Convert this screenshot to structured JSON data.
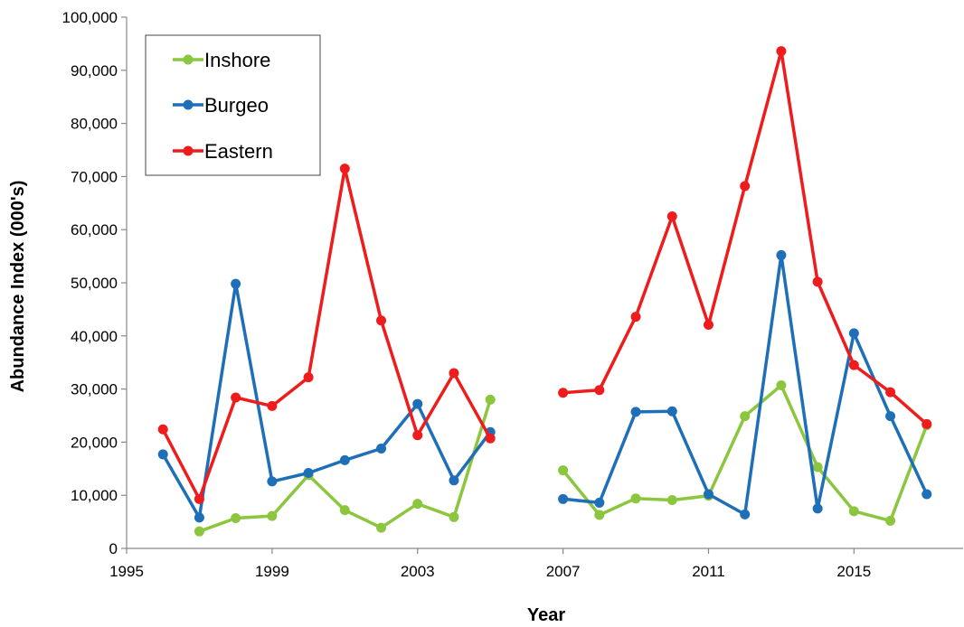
{
  "chart_data": {
    "type": "line",
    "title": "",
    "xlabel": "Year",
    "ylabel": "Abundance Index (000's)",
    "xlim": [
      1995,
      2018
    ],
    "ylim": [
      0,
      100000
    ],
    "x_ticks": [
      1995,
      1999,
      2003,
      2007,
      2011,
      2015
    ],
    "x_tick_labels": [
      "1995",
      "1999",
      "2003",
      "2007",
      "2011",
      "2015"
    ],
    "y_ticks": [
      0,
      10000,
      20000,
      30000,
      40000,
      50000,
      60000,
      70000,
      80000,
      90000,
      100000
    ],
    "y_tick_labels": [
      "0",
      "10,000",
      "20,000",
      "30,000",
      "40,000",
      "50,000",
      "60,000",
      "70,000",
      "80,000",
      "90,000",
      "100,000"
    ],
    "legend_position": "top-left",
    "grid": false,
    "series": [
      {
        "name": "Inshore",
        "color": "#8cc63f",
        "points": [
          [
            1997,
            3200
          ],
          [
            1998,
            5700
          ],
          [
            1999,
            6100
          ],
          [
            2000,
            13800
          ],
          [
            2001,
            7200
          ],
          [
            2002,
            3900
          ],
          [
            2003,
            8400
          ],
          [
            2004,
            5900
          ],
          [
            2005,
            28000
          ],
          [
            2007,
            14700
          ],
          [
            2008,
            6300
          ],
          [
            2009,
            9400
          ],
          [
            2010,
            9100
          ],
          [
            2011,
            9900
          ],
          [
            2012,
            24900
          ],
          [
            2013,
            30700
          ],
          [
            2014,
            15300
          ],
          [
            2015,
            7000
          ],
          [
            2016,
            5200
          ],
          [
            2017,
            23200
          ]
        ]
      },
      {
        "name": "Burgeo",
        "color": "#1f6fb8",
        "points": [
          [
            1996,
            17700
          ],
          [
            1997,
            5800
          ],
          [
            1998,
            49800
          ],
          [
            1999,
            12600
          ],
          [
            2000,
            14200
          ],
          [
            2001,
            16600
          ],
          [
            2002,
            18800
          ],
          [
            2003,
            27200
          ],
          [
            2004,
            12800
          ],
          [
            2005,
            21900
          ],
          [
            2007,
            9300
          ],
          [
            2008,
            8600
          ],
          [
            2009,
            25700
          ],
          [
            2010,
            25800
          ],
          [
            2011,
            10200
          ],
          [
            2012,
            6400
          ],
          [
            2013,
            55200
          ],
          [
            2014,
            7500
          ],
          [
            2015,
            40500
          ],
          [
            2016,
            24900
          ],
          [
            2017,
            10200
          ]
        ]
      },
      {
        "name": "Eastern",
        "color": "#ee1c1c",
        "points": [
          [
            1996,
            22400
          ],
          [
            1997,
            9300
          ],
          [
            1998,
            28400
          ],
          [
            1999,
            26800
          ],
          [
            2000,
            32200
          ],
          [
            2001,
            71500
          ],
          [
            2002,
            42900
          ],
          [
            2003,
            21300
          ],
          [
            2004,
            33000
          ],
          [
            2005,
            20700
          ],
          [
            2007,
            29300
          ],
          [
            2008,
            29800
          ],
          [
            2009,
            43600
          ],
          [
            2010,
            62500
          ],
          [
            2011,
            42100
          ],
          [
            2012,
            68200
          ],
          [
            2013,
            93600
          ],
          [
            2014,
            50200
          ],
          [
            2015,
            34500
          ],
          [
            2016,
            29400
          ],
          [
            2017,
            23400
          ]
        ]
      }
    ]
  }
}
